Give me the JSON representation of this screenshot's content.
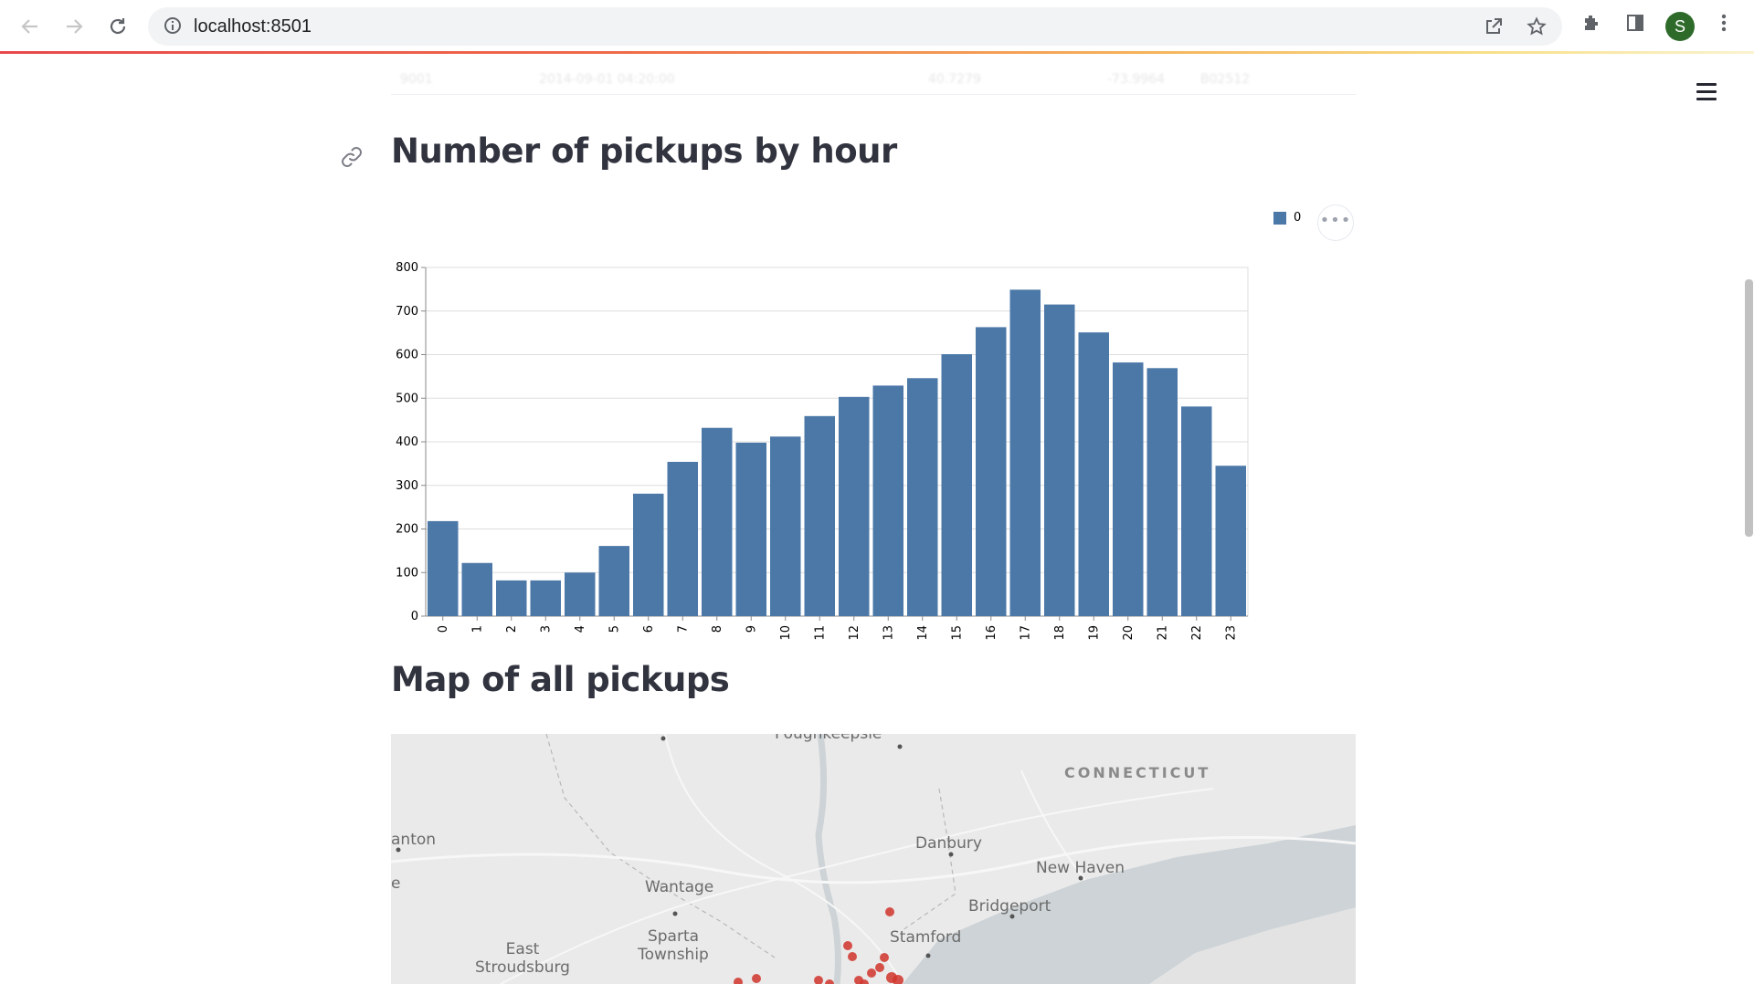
{
  "browser": {
    "url": "localhost:8501",
    "avatar_letter": "S",
    "icons": [
      "back-arrow-icon",
      "forward-arrow-icon",
      "reload-icon",
      "info-icon",
      "share-icon",
      "star-icon",
      "extensions-icon",
      "side-panel-icon",
      "kebab-menu-icon"
    ]
  },
  "page": {
    "chart_title": "Number of pickups by hour",
    "map_title": "Map of all pickups",
    "accent_color": "#4c78a8",
    "ghost_row": [
      "9001",
      "2014-09-01 04:20:00",
      "40.7279",
      "-73.9964",
      "B02512"
    ]
  },
  "chart_data": {
    "type": "bar",
    "title": "",
    "categories": [
      "0",
      "1",
      "2",
      "3",
      "4",
      "5",
      "6",
      "7",
      "8",
      "9",
      "10",
      "11",
      "12",
      "13",
      "14",
      "15",
      "16",
      "17",
      "18",
      "19",
      "20",
      "21",
      "22",
      "23"
    ],
    "series": [
      {
        "name": "0",
        "values": [
          218,
          122,
          82,
          82,
          100,
          161,
          281,
          354,
          432,
          398,
          412,
          459,
          503,
          529,
          546,
          601,
          663,
          749,
          715,
          651,
          582,
          569,
          481,
          345
        ]
      }
    ],
    "ylim": [
      0,
      800
    ],
    "yticks": [
      0,
      100,
      200,
      300,
      400,
      500,
      600,
      700,
      800
    ],
    "xlabel": "",
    "ylabel": "",
    "grid": true,
    "legend_position": "top-right",
    "color": "#4c78a8"
  },
  "map": {
    "labels": [
      {
        "text": "CONNECTICUT",
        "kind": "state"
      },
      {
        "text": "Poughkeepsie",
        "kind": "city"
      },
      {
        "text": "anton",
        "kind": "city"
      },
      {
        "text": "Danbury",
        "kind": "city"
      },
      {
        "text": "New Haven",
        "kind": "city"
      },
      {
        "text": "Wantage",
        "kind": "city"
      },
      {
        "text": "Bridgeport",
        "kind": "city"
      },
      {
        "text": "Sparta Township",
        "kind": "city"
      },
      {
        "text": "Stamford",
        "kind": "city"
      },
      {
        "text": "East Stroudsburg",
        "kind": "city"
      },
      {
        "text": "e",
        "kind": "city"
      }
    ],
    "point_color": "#d0342c"
  }
}
